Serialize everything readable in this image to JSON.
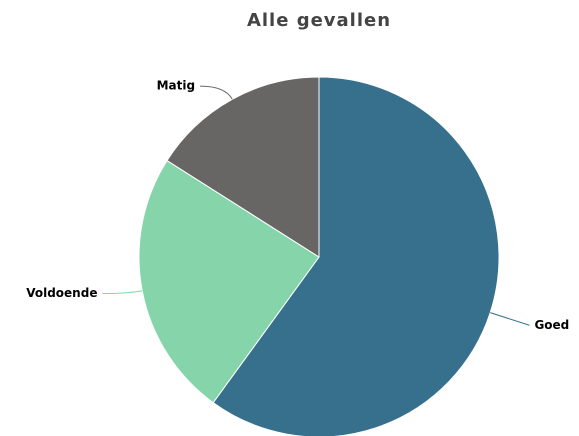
{
  "chart_data": {
    "type": "pie",
    "title": "Alle gevallen",
    "categories": [
      "Goed",
      "Voldoende",
      "Matig"
    ],
    "values": [
      60,
      24,
      16
    ],
    "colors": [
      "#36708c",
      "#86d5aa",
      "#676665"
    ]
  }
}
